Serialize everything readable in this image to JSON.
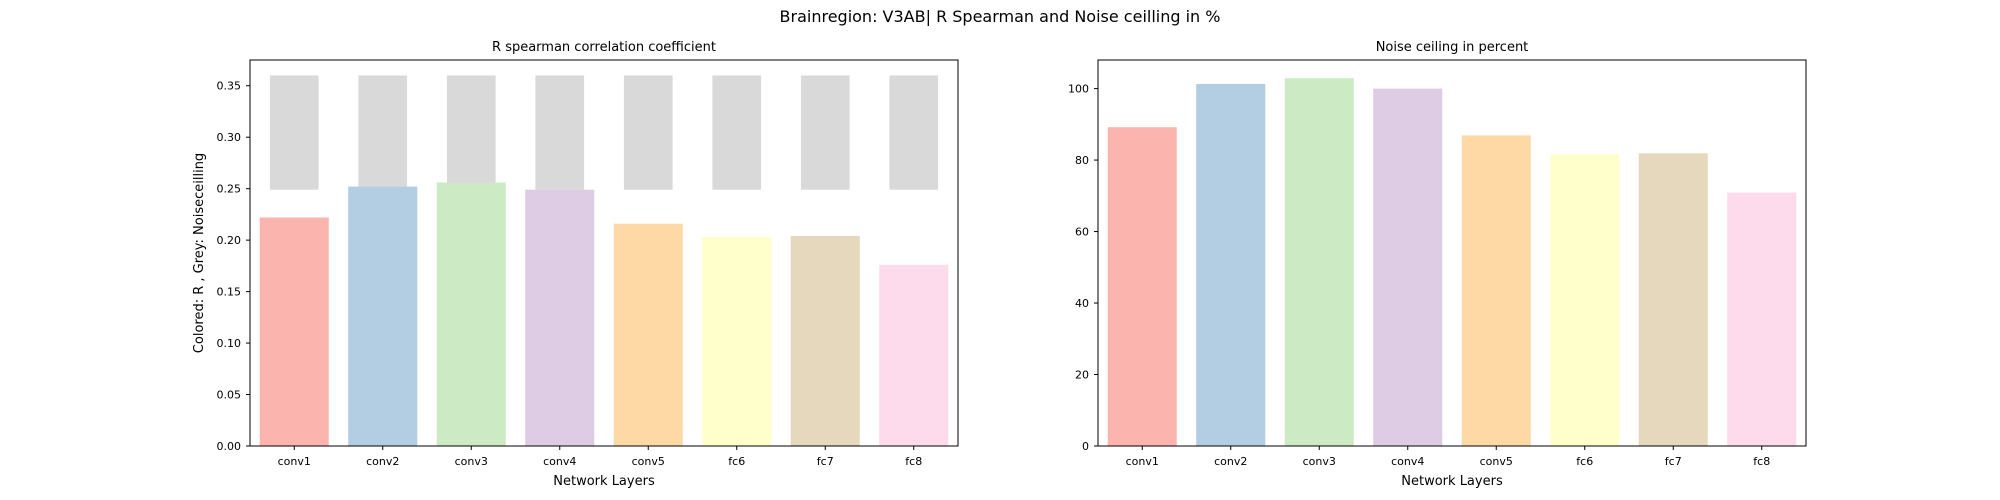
{
  "figure": {
    "title": "Brainregion: V3AB| R Spearman and Noise ceilling in %"
  },
  "chart_data": [
    {
      "type": "bar",
      "title": "R spearman correlation coefficient",
      "xlabel": "Network Layers",
      "ylabel": "Colored: R , Grey: Noiseceilling",
      "categories": [
        "conv1",
        "conv2",
        "conv3",
        "conv4",
        "conv5",
        "fc6",
        "fc7",
        "fc8"
      ],
      "ylim": [
        0,
        0.375
      ],
      "yticks": [
        "0.00",
        "0.05",
        "0.10",
        "0.15",
        "0.20",
        "0.25",
        "0.30",
        "0.35"
      ],
      "values": [
        0.222,
        0.252,
        0.256,
        0.249,
        0.216,
        0.203,
        0.204,
        0.176
      ],
      "noise_ceiling": {
        "lower": 0.249,
        "upper": 0.36
      },
      "colors": [
        "#fbb4ae",
        "#b3cde3",
        "#ccebc5",
        "#decbe4",
        "#fed9a6",
        "#ffffcc",
        "#e5d8bd",
        "#fddaec"
      ],
      "noise_color": "#d9d9d9",
      "grid": false
    },
    {
      "type": "bar",
      "title": "Noise ceiling in percent",
      "xlabel": "Network Layers",
      "ylabel": "",
      "categories": [
        "conv1",
        "conv2",
        "conv3",
        "conv4",
        "conv5",
        "fc6",
        "fc7",
        "fc8"
      ],
      "ylim": [
        0,
        108
      ],
      "yticks": [
        "0",
        "20",
        "40",
        "60",
        "80",
        "100"
      ],
      "values": [
        89.2,
        101.3,
        102.9,
        100.0,
        86.9,
        81.6,
        81.9,
        70.9
      ],
      "colors": [
        "#fbb4ae",
        "#b3cde3",
        "#ccebc5",
        "#decbe4",
        "#fed9a6",
        "#ffffcc",
        "#e5d8bd",
        "#fddaec"
      ],
      "grid": false
    }
  ]
}
